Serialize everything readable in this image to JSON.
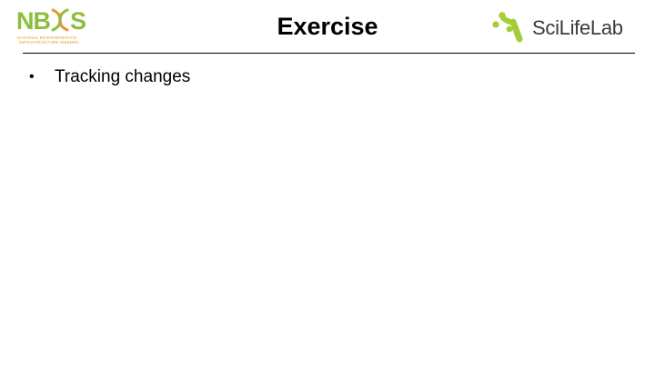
{
  "slide": {
    "title": "Exercise",
    "bullets": [
      {
        "marker": "•",
        "text": "Tracking changes"
      }
    ]
  },
  "logos": {
    "left": {
      "name": "NBIS",
      "letters_a": "NB",
      "letters_b": "S",
      "line1": "NATIONAL BIOINFORMATICS",
      "line2": "INFRASTRUCTURE SWEDEN",
      "colors": {
        "primary": "#8cbf3f",
        "secondary": "#e39a3b"
      }
    },
    "right": {
      "name": "SciLifeLab",
      "colors": {
        "mark": "#a5cd39",
        "text": "#3b3b3b"
      }
    }
  },
  "colors": {
    "background": "#ffffff",
    "text": "#000000",
    "divider": "#000000"
  }
}
